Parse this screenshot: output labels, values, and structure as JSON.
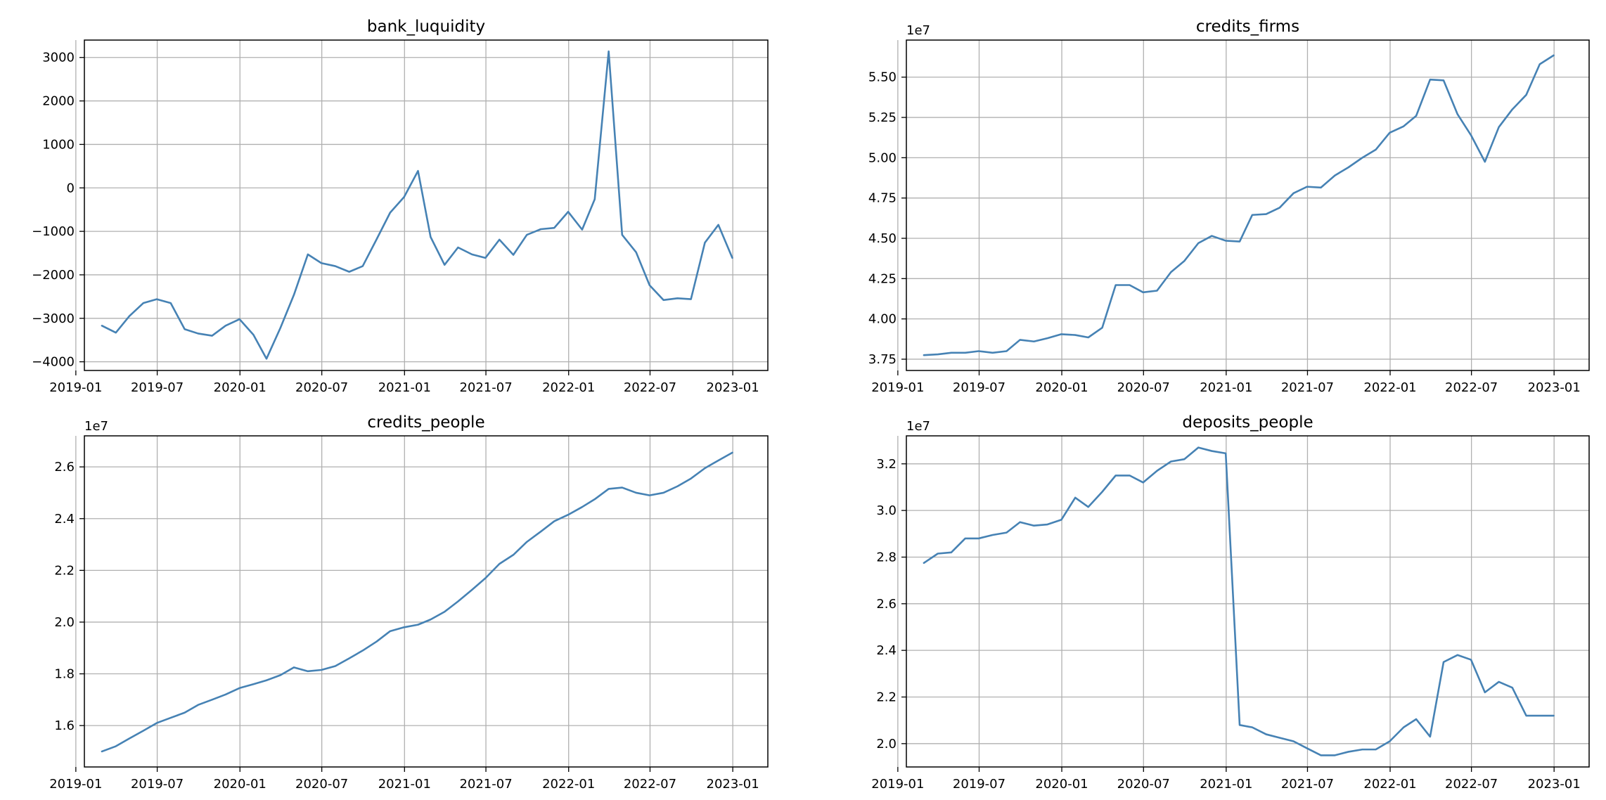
{
  "figure": {
    "background": "#ffffff",
    "line_color": "#4682b4",
    "grid_color": "#b0b0b0"
  },
  "chart_data": [
    {
      "type": "line",
      "title": "bank_luquidity",
      "grid": true,
      "x_ticks": [
        "2019-01",
        "2019-07",
        "2020-01",
        "2020-07",
        "2021-01",
        "2021-07",
        "2022-01",
        "2022-07",
        "2023-01"
      ],
      "y_ticks": [
        "3000",
        "2000",
        "1000",
        "0",
        "−1000",
        "−2000",
        "−3000",
        "−4000"
      ],
      "y_offset_label": "",
      "xlim": [
        "2019-01-20",
        "2023-03-20"
      ],
      "ylim": [
        -4200,
        3400
      ],
      "series": [
        {
          "x": [
            "2019-02-28",
            "2019-03-31",
            "2019-04-30",
            "2019-05-31",
            "2019-06-30",
            "2019-07-31",
            "2019-08-31",
            "2019-09-30",
            "2019-10-31",
            "2019-11-30",
            "2019-12-31",
            "2020-01-31",
            "2020-02-29",
            "2020-03-31",
            "2020-04-30",
            "2020-05-31",
            "2020-06-30",
            "2020-07-31",
            "2020-08-31",
            "2020-09-30",
            "2020-10-31",
            "2020-11-30",
            "2020-12-31",
            "2021-01-31",
            "2021-02-28",
            "2021-03-31",
            "2021-04-30",
            "2021-05-31",
            "2021-06-30",
            "2021-07-31",
            "2021-08-31",
            "2021-09-30",
            "2021-10-31",
            "2021-11-30",
            "2021-12-31",
            "2022-01-31",
            "2022-02-28",
            "2022-03-31",
            "2022-04-30",
            "2022-05-31",
            "2022-06-30",
            "2022-07-31",
            "2022-08-31",
            "2022-09-30",
            "2022-10-31",
            "2022-11-30",
            "2022-12-31"
          ],
          "values": [
            -3170,
            -3330,
            -2950,
            -2650,
            -2560,
            -2650,
            -3250,
            -3350,
            -3400,
            -3170,
            -3020,
            -3380,
            -3930,
            -3220,
            -2460,
            -1530,
            -1730,
            -1800,
            -1930,
            -1800,
            -1180,
            -570,
            -210,
            390,
            -1130,
            -1770,
            -1370,
            -1530,
            -1610,
            -1190,
            -1540,
            -1080,
            -950,
            -920,
            -550,
            -960,
            -260,
            3140,
            -1080,
            -1480,
            -2240,
            -2580,
            -2540,
            -2560,
            -1260,
            -850,
            -1610
          ]
        }
      ]
    },
    {
      "type": "line",
      "title": "credits_firms",
      "grid": true,
      "x_ticks": [
        "2019-01",
        "2019-07",
        "2020-01",
        "2020-07",
        "2021-01",
        "2021-07",
        "2022-01",
        "2022-07",
        "2023-01"
      ],
      "y_ticks": [
        "5.50",
        "5.25",
        "5.00",
        "4.75",
        "4.50",
        "4.25",
        "4.00",
        "3.75"
      ],
      "y_offset_label": "1e7",
      "xlim": [
        "2019-01-20",
        "2023-03-20"
      ],
      "ylim": [
        3.68,
        5.73
      ],
      "series": [
        {
          "x": [
            "2019-02-28",
            "2019-03-31",
            "2019-04-30",
            "2019-05-31",
            "2019-06-30",
            "2019-07-31",
            "2019-08-31",
            "2019-09-30",
            "2019-10-31",
            "2019-11-30",
            "2019-12-31",
            "2020-01-31",
            "2020-02-29",
            "2020-03-31",
            "2020-04-30",
            "2020-05-31",
            "2020-06-30",
            "2020-07-31",
            "2020-08-31",
            "2020-09-30",
            "2020-10-31",
            "2020-11-30",
            "2020-12-31",
            "2021-01-31",
            "2021-02-28",
            "2021-03-31",
            "2021-04-30",
            "2021-05-31",
            "2021-06-30",
            "2021-07-31",
            "2021-08-31",
            "2021-09-30",
            "2021-10-31",
            "2021-11-30",
            "2021-12-31",
            "2022-01-31",
            "2022-02-28",
            "2022-03-31",
            "2022-04-30",
            "2022-05-31",
            "2022-06-30",
            "2022-07-31",
            "2022-08-31",
            "2022-09-30",
            "2022-10-31",
            "2022-11-30",
            "2022-12-31"
          ],
          "values": [
            3.775,
            3.78,
            3.79,
            3.79,
            3.8,
            3.79,
            3.8,
            3.87,
            3.86,
            3.88,
            3.905,
            3.9,
            3.885,
            3.945,
            4.21,
            4.21,
            4.165,
            4.175,
            4.29,
            4.36,
            4.47,
            4.515,
            4.485,
            4.48,
            4.645,
            4.65,
            4.69,
            4.78,
            4.82,
            4.815,
            4.89,
            4.94,
            5.0,
            5.05,
            5.155,
            5.195,
            5.26,
            5.485,
            5.48,
            5.27,
            5.14,
            4.975,
            5.19,
            5.3,
            5.39,
            5.58,
            5.635
          ]
        }
      ]
    },
    {
      "type": "line",
      "title": "credits_people",
      "grid": true,
      "x_ticks": [
        "2019-01",
        "2019-07",
        "2020-01",
        "2020-07",
        "2021-01",
        "2021-07",
        "2022-01",
        "2022-07",
        "2023-01"
      ],
      "y_ticks": [
        "2.6",
        "2.4",
        "2.2",
        "2.0",
        "1.8",
        "1.6"
      ],
      "y_offset_label": "1e7",
      "xlim": [
        "2019-01-20",
        "2023-03-20"
      ],
      "ylim": [
        1.44,
        2.72
      ],
      "series": [
        {
          "x": [
            "2019-02-28",
            "2019-03-31",
            "2019-04-30",
            "2019-05-31",
            "2019-06-30",
            "2019-07-31",
            "2019-08-31",
            "2019-09-30",
            "2019-10-31",
            "2019-11-30",
            "2019-12-31",
            "2020-01-31",
            "2020-02-29",
            "2020-03-31",
            "2020-04-30",
            "2020-05-31",
            "2020-06-30",
            "2020-07-31",
            "2020-08-31",
            "2020-09-30",
            "2020-10-31",
            "2020-11-30",
            "2020-12-31",
            "2021-01-31",
            "2021-02-28",
            "2021-03-31",
            "2021-04-30",
            "2021-05-31",
            "2021-06-30",
            "2021-07-31",
            "2021-08-31",
            "2021-09-30",
            "2021-10-31",
            "2021-11-30",
            "2021-12-31",
            "2022-01-31",
            "2022-02-28",
            "2022-03-31",
            "2022-04-30",
            "2022-05-31",
            "2022-06-30",
            "2022-07-31",
            "2022-08-31",
            "2022-09-30",
            "2022-10-31",
            "2022-11-30",
            "2022-12-31"
          ],
          "values": [
            1.5,
            1.52,
            1.55,
            1.58,
            1.61,
            1.63,
            1.65,
            1.68,
            1.7,
            1.72,
            1.745,
            1.76,
            1.775,
            1.795,
            1.825,
            1.81,
            1.815,
            1.83,
            1.86,
            1.89,
            1.925,
            1.965,
            1.98,
            1.99,
            2.01,
            2.04,
            2.08,
            2.125,
            2.17,
            2.225,
            2.26,
            2.31,
            2.35,
            2.39,
            2.415,
            2.445,
            2.475,
            2.515,
            2.52,
            2.5,
            2.49,
            2.5,
            2.525,
            2.555,
            2.595,
            2.625,
            2.655
          ]
        }
      ]
    },
    {
      "type": "line",
      "title": "deposits_people",
      "grid": true,
      "x_ticks": [
        "2019-01",
        "2019-07",
        "2020-01",
        "2020-07",
        "2021-01",
        "2021-07",
        "2022-01",
        "2022-07",
        "2023-01"
      ],
      "y_ticks": [
        "3.2",
        "3.0",
        "2.8",
        "2.6",
        "2.4",
        "2.2",
        "2.0"
      ],
      "y_offset_label": "1e7",
      "xlim": [
        "2019-01-20",
        "2023-03-20"
      ],
      "ylim": [
        1.9,
        3.32
      ],
      "series": [
        {
          "x": [
            "2019-02-28",
            "2019-03-31",
            "2019-04-30",
            "2019-05-31",
            "2019-06-30",
            "2019-07-31",
            "2019-08-31",
            "2019-09-30",
            "2019-10-31",
            "2019-11-30",
            "2019-12-31",
            "2020-01-31",
            "2020-02-29",
            "2020-03-31",
            "2020-04-30",
            "2020-05-31",
            "2020-06-30",
            "2020-07-31",
            "2020-08-31",
            "2020-09-30",
            "2020-10-31",
            "2020-11-30",
            "2020-12-31",
            "2021-01-31",
            "2021-02-28",
            "2021-03-31",
            "2021-04-30",
            "2021-05-31",
            "2021-06-30",
            "2021-07-31",
            "2021-08-31",
            "2021-09-30",
            "2021-10-31",
            "2021-11-30",
            "2021-12-31",
            "2022-01-31",
            "2022-02-28",
            "2022-03-31",
            "2022-04-30",
            "2022-05-31",
            "2022-06-30",
            "2022-07-31",
            "2022-08-31",
            "2022-09-30",
            "2022-10-31",
            "2022-11-30",
            "2022-12-31"
          ],
          "values": [
            2.775,
            2.815,
            2.82,
            2.88,
            2.88,
            2.895,
            2.905,
            2.95,
            2.935,
            2.94,
            2.96,
            3.055,
            3.015,
            3.08,
            3.15,
            3.15,
            3.12,
            3.17,
            3.21,
            3.22,
            3.27,
            3.255,
            3.245,
            2.08,
            2.07,
            2.04,
            2.025,
            2.01,
            1.98,
            1.95,
            1.95,
            1.965,
            1.975,
            1.975,
            2.01,
            2.07,
            2.105,
            2.03,
            2.35,
            2.38,
            2.36,
            2.22,
            2.265,
            2.24,
            2.12,
            2.12,
            2.12
          ]
        }
      ]
    }
  ]
}
